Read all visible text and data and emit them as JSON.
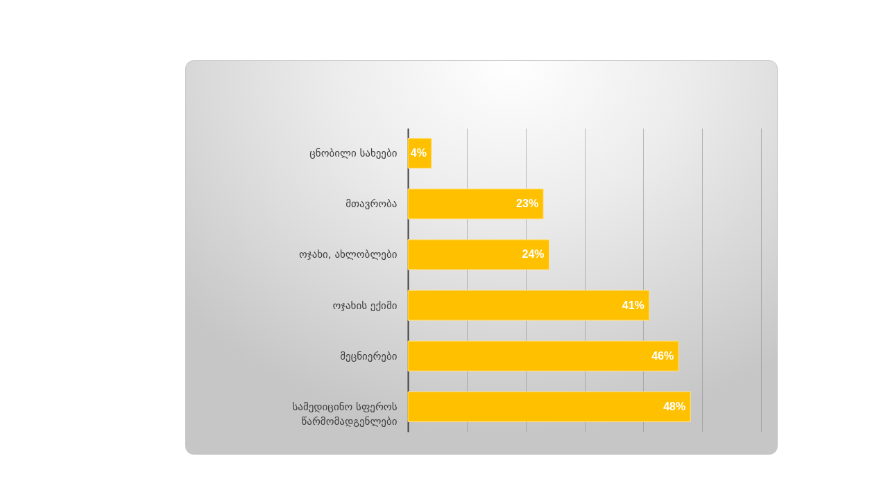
{
  "chart_data": {
    "type": "bar",
    "orientation": "horizontal",
    "categories": [
      "ცნობილი სახეები",
      "მთავრობა",
      "ოჯახი, ახლობლები",
      "ოჯახის ექიმი",
      "მეცნიერები",
      "სამედიცინო სფეროს წარმომადგენლები"
    ],
    "values": [
      4,
      23,
      24,
      41,
      46,
      48
    ],
    "value_labels": [
      "4%",
      "23%",
      "24%",
      "41%",
      "46%",
      "48%"
    ],
    "color": "#ffc000",
    "xlim": [
      0,
      60
    ],
    "xticks": [
      {
        "value": 0,
        "label": null
      },
      {
        "value": 10,
        "label": null
      },
      {
        "value": 20,
        "label": null
      },
      {
        "value": 30,
        "label": null
      },
      {
        "value": 40,
        "label": null
      },
      {
        "value": 50,
        "label": null
      },
      {
        "value": 60,
        "label": null
      }
    ],
    "grid": "x",
    "tick_labels": "y"
  }
}
